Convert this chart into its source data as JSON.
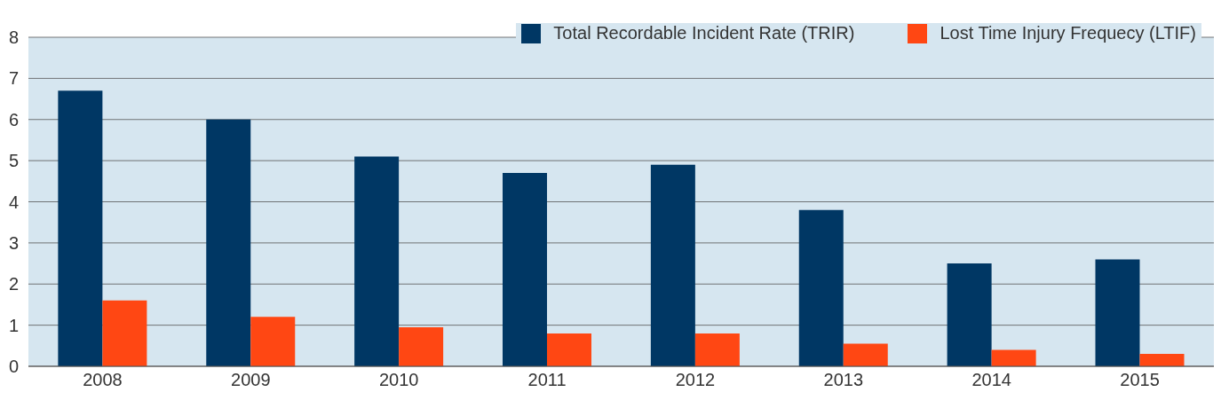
{
  "chart_data": {
    "type": "bar",
    "categories": [
      "2008",
      "2009",
      "2010",
      "2011",
      "2012",
      "2013",
      "2014",
      "2015"
    ],
    "series": [
      {
        "name": "Total Recordable Incident Rate (TRIR)",
        "color": "#003764",
        "values": [
          6.7,
          6.0,
          5.1,
          4.7,
          4.9,
          3.8,
          2.5,
          2.6
        ]
      },
      {
        "name": "Lost Time Injury Frequecy (LTIF)",
        "color": "#ff4713",
        "values": [
          1.6,
          1.2,
          0.95,
          0.8,
          0.8,
          0.55,
          0.4,
          0.3
        ]
      }
    ],
    "ylim": [
      0,
      8
    ],
    "yticks": [
      0,
      1,
      2,
      3,
      4,
      5,
      6,
      7,
      8
    ],
    "grid": "y",
    "legend": "top right"
  }
}
